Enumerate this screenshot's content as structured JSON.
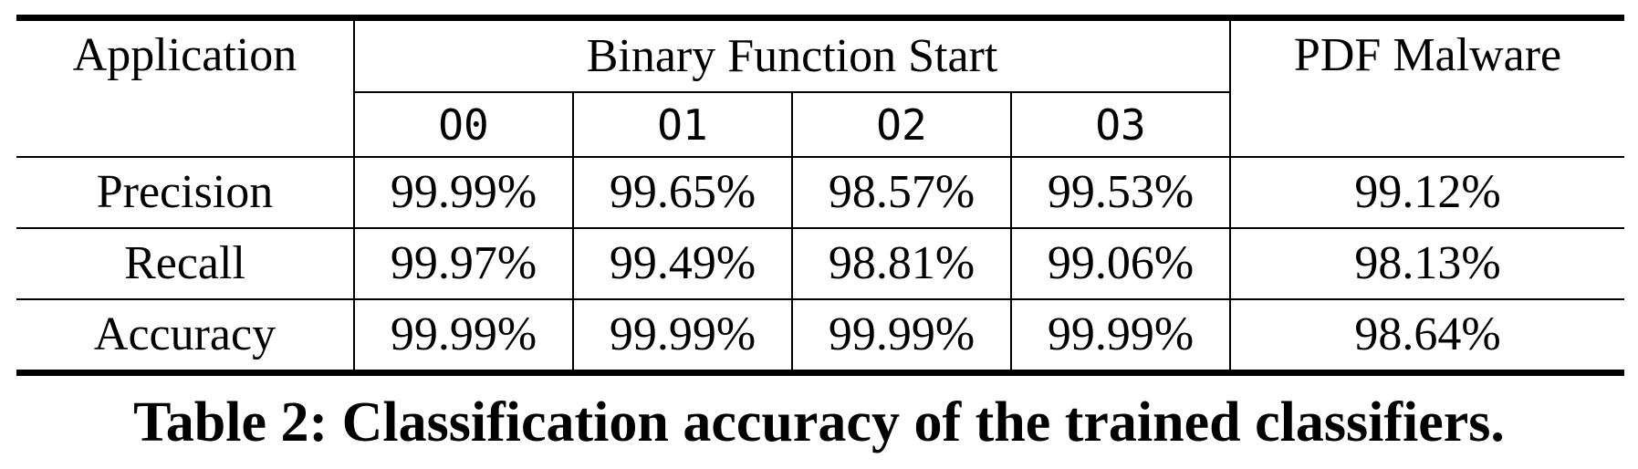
{
  "table": {
    "header": {
      "row_label": "Application",
      "group_bfs": "Binary Function Start",
      "group_pdf": "PDF Malware",
      "sub_columns": [
        "O0",
        "O1",
        "O2",
        "O3"
      ]
    },
    "rows": [
      {
        "label": "Precision",
        "values": [
          "99.99%",
          "99.65%",
          "98.57%",
          "99.53%",
          "99.12%"
        ]
      },
      {
        "label": "Recall",
        "values": [
          "99.97%",
          "99.49%",
          "98.81%",
          "99.06%",
          "98.13%"
        ]
      },
      {
        "label": "Accuracy",
        "values": [
          "99.99%",
          "99.99%",
          "99.99%",
          "99.99%",
          "98.64%"
        ]
      }
    ]
  },
  "caption": "Table 2: Classification accuracy of the trained classifiers."
}
